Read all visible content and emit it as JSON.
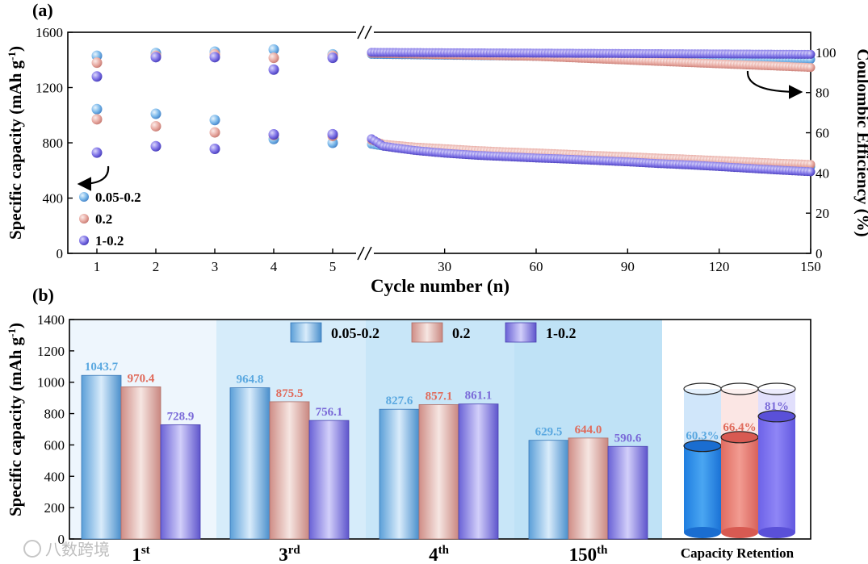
{
  "panel_a": {
    "label": "(a)",
    "legend": [
      "0.05-0.2",
      "0.2",
      "1-0.2"
    ]
  },
  "panel_b": {
    "label": "(b)",
    "legend": [
      "0.05-0.2",
      "0.2",
      "1-0.2"
    ],
    "retention_title": "Capacity Retention"
  },
  "watermark": "八数跨境",
  "colors": {
    "s1": "#7ab8ea",
    "s1_dark": "#4a86c8",
    "s1_label": "#5aa8e0",
    "s2": "#e8aaa2",
    "s2_dark": "#c87a72",
    "s2_label": "#e06a5a",
    "s3": "#7e72e6",
    "s3_dark": "#4a3ec0",
    "s3_label": "#7a6ad8",
    "panel_bg_a": "#eef6fd",
    "panel_bg_b": "#d6ecfa"
  },
  "chart_data": [
    {
      "type": "scatter",
      "title": "(a)",
      "xlabel": "Cycle number (n)",
      "ylabel": "Specific capacity (mAh g-1)",
      "y2label": "Coulombic Efficiency (%)",
      "xticks_left": [
        "1",
        "2",
        "3",
        "4",
        "5"
      ],
      "xticks_right": [
        "30",
        "60",
        "90",
        "120",
        "150"
      ],
      "ylim": [
        0,
        1600
      ],
      "y2lim": [
        0,
        110
      ],
      "yticks": [
        0,
        400,
        800,
        1200,
        1600
      ],
      "y2ticks": [
        0,
        20,
        40,
        60,
        80,
        100
      ],
      "x_right_range": [
        6,
        150
      ],
      "series": [
        {
          "name": "0.05-0.2",
          "discharge_first5": [
            1430,
            1450,
            1460,
            1475,
            1440
          ],
          "charge_first5": [
            1043.7,
            1010,
            964.8,
            827.6,
            800
          ],
          "capacity_curve": [
            [
              6,
              790
            ],
            [
              10,
              775
            ],
            [
              20,
              760
            ],
            [
              30,
              750
            ],
            [
              40,
              740
            ],
            [
              50,
              730
            ],
            [
              60,
              720
            ],
            [
              70,
              710
            ],
            [
              80,
              700
            ],
            [
              90,
              690
            ],
            [
              100,
              680
            ],
            [
              110,
              670
            ],
            [
              120,
              660
            ],
            [
              130,
              650
            ],
            [
              140,
              640
            ],
            [
              150,
              629.5
            ]
          ],
          "ce_curve": [
            [
              6,
              99
            ],
            [
              150,
              96.5
            ]
          ]
        },
        {
          "name": "0.2",
          "discharge_first5": [
            1380,
            1430,
            1440,
            1415,
            1430
          ],
          "charge_first5": [
            970.4,
            920,
            875.5,
            857.1,
            850
          ],
          "capacity_curve": [
            [
              6,
              820
            ],
            [
              10,
              790
            ],
            [
              20,
              770
            ],
            [
              30,
              758
            ],
            [
              40,
              745
            ],
            [
              50,
              735
            ],
            [
              60,
              727
            ],
            [
              70,
              718
            ],
            [
              80,
              708
            ],
            [
              90,
              700
            ],
            [
              100,
              690
            ],
            [
              110,
              682
            ],
            [
              120,
              672
            ],
            [
              130,
              662
            ],
            [
              140,
              652
            ],
            [
              150,
              644.0
            ]
          ],
          "ce_curve": [
            [
              6,
              99.5
            ],
            [
              60,
              98
            ],
            [
              100,
              95.5
            ],
            [
              150,
              92.5
            ]
          ]
        },
        {
          "name": "1-0.2",
          "discharge_first5": [
            1280,
            1420,
            1420,
            1330,
            1415
          ],
          "charge_first5": [
            728.9,
            775,
            756.1,
            861.1,
            862
          ],
          "capacity_curve": [
            [
              6,
              830
            ],
            [
              10,
              775
            ],
            [
              20,
              745
            ],
            [
              30,
              725
            ],
            [
              40,
              710
            ],
            [
              50,
              700
            ],
            [
              60,
              690
            ],
            [
              70,
              682
            ],
            [
              80,
              672
            ],
            [
              90,
              662
            ],
            [
              100,
              650
            ],
            [
              110,
              640
            ],
            [
              120,
              628
            ],
            [
              130,
              615
            ],
            [
              140,
              602
            ],
            [
              150,
              590.6
            ]
          ],
          "ce_curve": [
            [
              6,
              100
            ],
            [
              150,
              99
            ]
          ]
        }
      ]
    },
    {
      "type": "bar",
      "title": "(b)",
      "xlabel": "",
      "ylabel": "Specific capacity (mAh g-1)",
      "ylim": [
        0,
        1400
      ],
      "yticks": [
        0,
        200,
        400,
        600,
        800,
        1000,
        1200,
        1400
      ],
      "categories": [
        {
          "base": "1",
          "sup": "st"
        },
        {
          "base": "3",
          "sup": "rd"
        },
        {
          "base": "4",
          "sup": "th"
        },
        {
          "base": "150",
          "sup": "th"
        }
      ],
      "series": [
        {
          "name": "0.05-0.2",
          "values": [
            1043.7,
            964.8,
            827.6,
            629.5
          ],
          "labels": [
            "1043.7",
            "964.8",
            "827.6",
            "629.5"
          ]
        },
        {
          "name": "0.2",
          "values": [
            970.4,
            875.5,
            857.1,
            644.0
          ],
          "labels": [
            "970.4",
            "875.5",
            "857.1",
            "644.0"
          ]
        },
        {
          "name": "1-0.2",
          "values": [
            728.9,
            756.1,
            861.1,
            590.6
          ],
          "labels": [
            "728.9",
            "756.1",
            "861.1",
            "590.6"
          ]
        }
      ],
      "retention": {
        "title": "Capacity Retention",
        "values": [
          60.3,
          66.4,
          81
        ],
        "labels": [
          "60.3%",
          "66.4%",
          "81%"
        ]
      }
    }
  ]
}
